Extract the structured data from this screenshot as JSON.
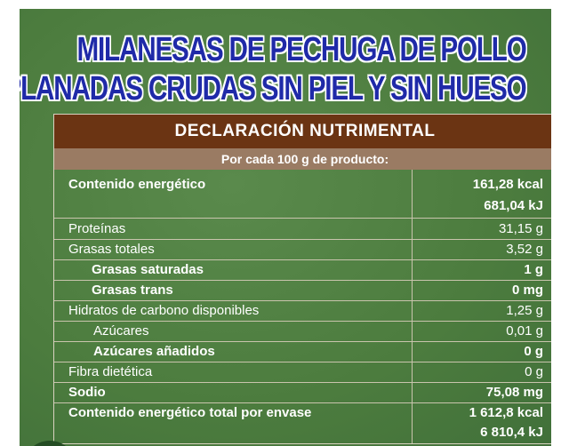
{
  "title": {
    "line1": "MILANESAS DE PECHUGA DE POLLO",
    "line2": "APLANADAS CRUDAS SIN PIEL Y SIN HUESO"
  },
  "table": {
    "header": "DECLARACIÓN NUTRIMENTAL",
    "subheader": "Por cada 100 g de producto:",
    "rows": [
      {
        "label": "Contenido energético",
        "value": "161,28 kcal",
        "value2": "681,04 kJ"
      },
      {
        "label": "Proteínas",
        "value": "31,15 g"
      },
      {
        "label": "Grasas totales",
        "value": "3,52 g"
      },
      {
        "label": "Grasas saturadas",
        "value": "1 g"
      },
      {
        "label": "Grasas trans",
        "value": "0 mg"
      },
      {
        "label": "Hidratos de carbono disponibles",
        "value": "1,25 g"
      },
      {
        "label": "Azúcares",
        "value": "0,01 g"
      },
      {
        "label": "Azúcares añadidos",
        "value": "0 g"
      },
      {
        "label": "Fibra dietética",
        "value": "0 g"
      },
      {
        "label": "Sodio",
        "value": "75,08 mg"
      },
      {
        "label": "Contenido energético total por envase",
        "value": "1 612,8 kcal",
        "value2": "6 810,4 kJ"
      }
    ]
  },
  "colors": {
    "background_green": "#4c7c3e",
    "header_brown": "#6b3413",
    "subheader_tan": "#9a7b63",
    "title_blue": "#1f2aa8"
  }
}
